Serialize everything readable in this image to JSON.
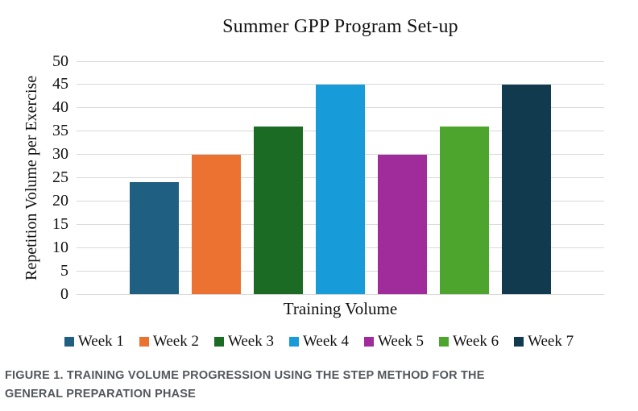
{
  "figure": {
    "caption": "FIGURE 1. TRAINING VOLUME PROGRESSION USING THE STEP METHOD FOR THE GENERAL PREPARATION PHASE",
    "caption_color": "#53575e"
  },
  "chart_data": {
    "type": "bar",
    "title": "Summer GPP Program Set-up",
    "xlabel": "Training Volume",
    "ylabel": "Repetition Volume per Exercise",
    "categories": [
      "Week 1",
      "Week 2",
      "Week 3",
      "Week 4",
      "Week 5",
      "Week 6",
      "Week 7"
    ],
    "values": [
      24,
      30,
      36,
      45,
      30,
      36,
      45
    ],
    "colors": [
      "#1F5F82",
      "#EC7232",
      "#1C6B24",
      "#189CD9",
      "#A02B9B",
      "#4DA52E",
      "#123A4E"
    ],
    "ylim": [
      0,
      50
    ],
    "ytick_step": 5,
    "grid": true,
    "gridline_color": "#d9d9d9",
    "legend_position": "bottom"
  }
}
